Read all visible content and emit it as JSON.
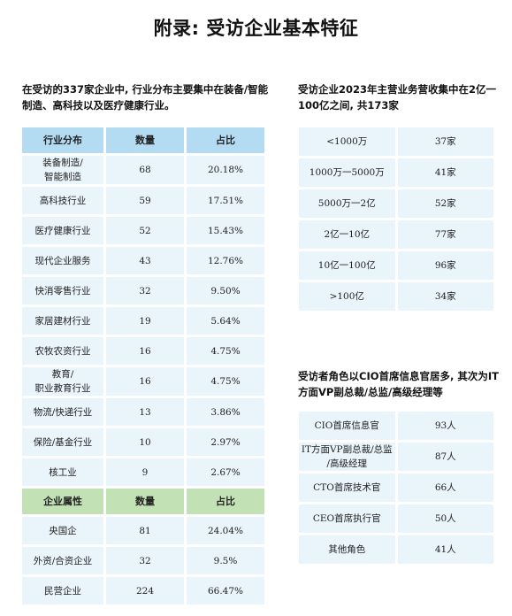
{
  "page": {
    "title": "附录: 受访企业基本特征",
    "intro_left": "在受访的337家企业中, 行业分布主要集中在装备/智能制造、高科技以及医疗健康行业。",
    "intro_right_top": "受访企业2023年主营业务营收集中在2亿一100亿之间, 共173家",
    "intro_right_bottom": "受访者角色以CIO首席信息官居多, 其次为IT方面VP副总裁/总监/高级经理等"
  },
  "industry_table": {
    "headers": [
      "行业分布",
      "数量",
      "占比"
    ],
    "rows": [
      {
        "name": "装备制造/\n智能制造",
        "count": "68",
        "pct": "20.18%"
      },
      {
        "name": "高科技行业",
        "count": "59",
        "pct": "17.51%"
      },
      {
        "name": "医疗健康行业",
        "count": "52",
        "pct": "15.43%"
      },
      {
        "name": "现代企业服务",
        "count": "43",
        "pct": "12.76%"
      },
      {
        "name": "快消零售行业",
        "count": "32",
        "pct": "9.50%"
      },
      {
        "name": "家居建材行业",
        "count": "19",
        "pct": "5.64%"
      },
      {
        "name": "农牧农资行业",
        "count": "16",
        "pct": "4.75%"
      },
      {
        "name": "教育/\n职业教育行业",
        "count": "16",
        "pct": "4.75%"
      },
      {
        "name": "物流/快递行业",
        "count": "13",
        "pct": "3.86%"
      },
      {
        "name": "保险/基金行业",
        "count": "10",
        "pct": "2.97%"
      },
      {
        "name": "核工业",
        "count": "9",
        "pct": "2.67%"
      }
    ]
  },
  "ownership_table": {
    "headers": [
      "企业属性",
      "数量",
      "占比"
    ],
    "rows": [
      {
        "name": "央国企",
        "count": "81",
        "pct": "24.04%"
      },
      {
        "name": "外资/合资企业",
        "count": "32",
        "pct": "9.5%"
      },
      {
        "name": "民营企业",
        "count": "224",
        "pct": "66.47%"
      }
    ]
  },
  "revenue_table": {
    "rows": [
      {
        "range": "<1000万",
        "count": "37家"
      },
      {
        "range": "1000万一5000万",
        "count": "41家"
      },
      {
        "range": "5000万一2亿",
        "count": "52家"
      },
      {
        "range": "2亿一10亿",
        "count": "77家"
      },
      {
        "range": "10亿一100亿",
        "count": "96家"
      },
      {
        "range": ">100亿",
        "count": "34家"
      }
    ]
  },
  "role_table": {
    "rows": [
      {
        "role": "CIO首席信息官",
        "count": "93人"
      },
      {
        "role": "IT方面VP副总裁/总监\n/高级经理",
        "count": "87人"
      },
      {
        "role": "CTO首席技术官",
        "count": "66人"
      },
      {
        "role": "CEO首席执行官",
        "count": "50人"
      },
      {
        "role": "其他角色",
        "count": "41人"
      }
    ]
  },
  "colors": {
    "header_blue": "#b3dcf3",
    "header_green": "#c2e1b4",
    "cell_bg": "#e9f4fb"
  }
}
